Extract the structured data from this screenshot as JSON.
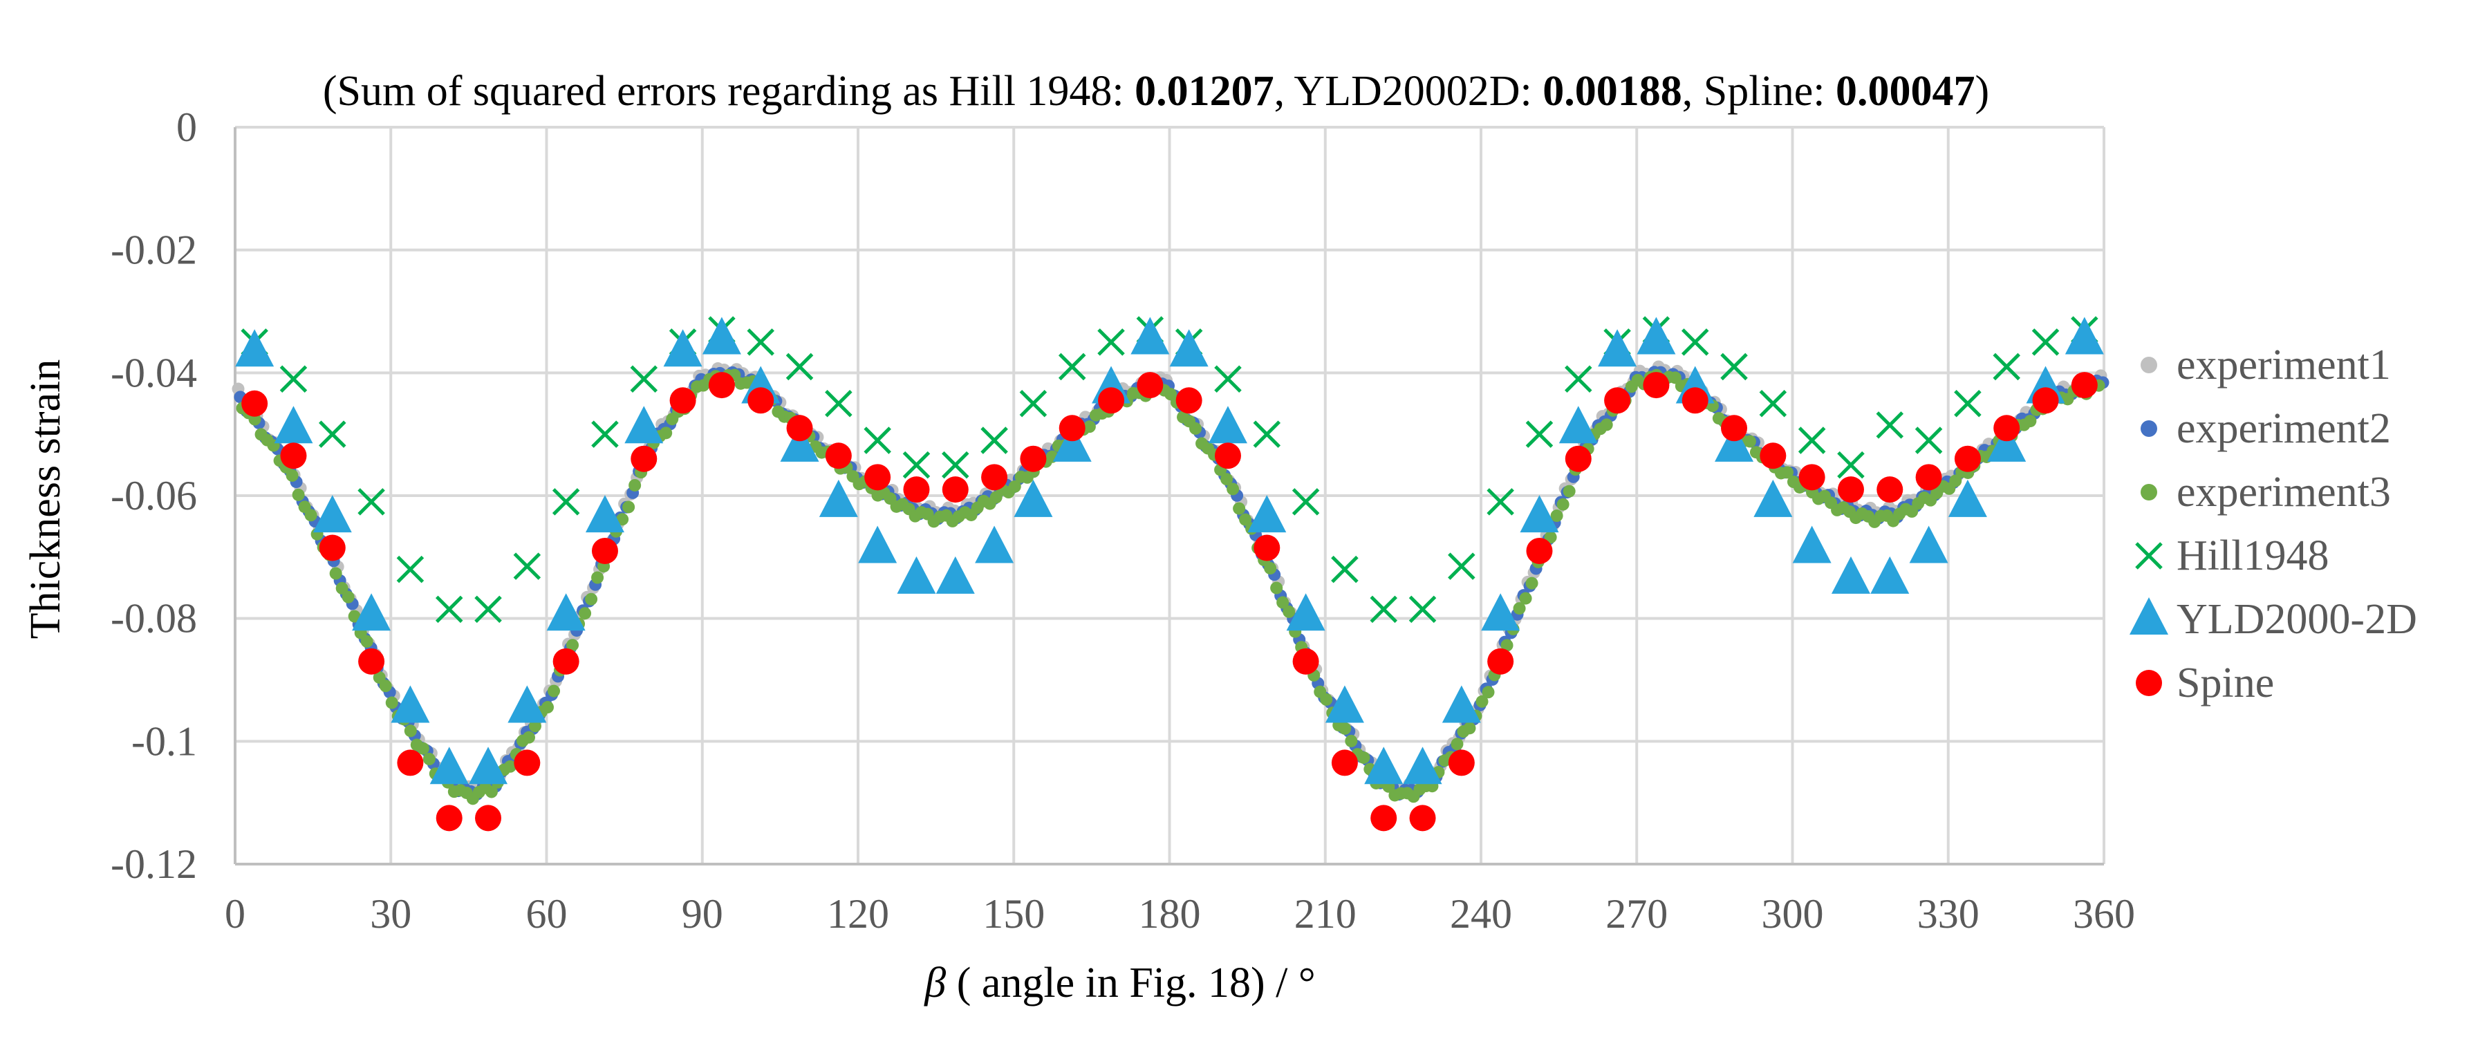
{
  "chart_data": {
    "type": "scatter",
    "title_parts": [
      {
        "text": "(Sum of squared errors regarding as  Hill 1948: ",
        "bold": false
      },
      {
        "text": "0.01207",
        "bold": true
      },
      {
        "text": ", YLD20002D: ",
        "bold": false
      },
      {
        "text": "0.00188",
        "bold": true
      },
      {
        "text": ", Spline: ",
        "bold": false
      },
      {
        "text": "0.00047",
        "bold": true
      },
      {
        "text": ")",
        "bold": false
      }
    ],
    "xlabel_italic": "β",
    "xlabel_rest": " ( angle in Fig. 18) / °",
    "ylabel": "Thickness strain",
    "xlim": [
      0,
      360
    ],
    "ylim": [
      -0.12,
      0
    ],
    "xticks": [
      0,
      30,
      60,
      90,
      120,
      150,
      180,
      210,
      240,
      270,
      300,
      330,
      360
    ],
    "yticks": [
      0,
      -0.02,
      -0.04,
      -0.06,
      -0.08,
      -0.1,
      -0.12
    ],
    "ytick_labels": [
      "0",
      "-0.02",
      "-0.04",
      "-0.06",
      "-0.08",
      "-0.1",
      "-0.12"
    ],
    "grid": true,
    "legend_position": "right",
    "experiment_curve": {
      "x": [
        0,
        10,
        20,
        30,
        40,
        45,
        50,
        60,
        70,
        80,
        90,
        95,
        100,
        110,
        120,
        130,
        135,
        140,
        150,
        160,
        170,
        180
      ],
      "y_base": [
        -0.043,
        -0.055,
        -0.073,
        -0.093,
        -0.106,
        -0.1085,
        -0.107,
        -0.094,
        -0.073,
        -0.052,
        -0.041,
        -0.04,
        -0.0415,
        -0.05,
        -0.057,
        -0.062,
        -0.0632,
        -0.063,
        -0.058,
        -0.051,
        -0.044,
        -0.0415
      ],
      "period": 180,
      "step": 1.2
    },
    "series": [
      {
        "name": "experiment1",
        "marker": "circle-small",
        "color": "#c0c0c0",
        "offset": 0.0006
      },
      {
        "name": "experiment2",
        "marker": "circle-small",
        "color": "#4472c4",
        "offset": 0.0
      },
      {
        "name": "experiment3",
        "marker": "circle-small",
        "color": "#70ad47",
        "offset": -0.0005
      },
      {
        "name": "Hill1948",
        "marker": "cross",
        "color": "#00b050",
        "x": [
          3.75,
          11.25,
          18.75,
          26.25,
          33.75,
          41.25,
          48.75,
          56.25,
          63.75,
          71.25,
          78.75,
          86.25,
          93.75,
          101.25,
          108.75,
          116.25,
          123.75,
          131.25,
          138.75,
          146.25,
          153.75,
          161.25,
          168.75,
          176.25,
          183.75,
          191.25,
          198.75,
          206.25,
          213.75,
          221.25,
          228.75,
          236.25,
          243.75,
          251.25,
          258.75,
          266.25,
          273.75,
          281.25,
          288.75,
          296.25,
          303.75,
          311.25,
          318.75,
          326.25,
          333.75,
          341.25,
          348.75,
          356.25
        ],
        "y": [
          -0.035,
          -0.041,
          -0.05,
          -0.061,
          -0.072,
          -0.0785,
          -0.0785,
          -0.0715,
          -0.061,
          -0.05,
          -0.041,
          -0.035,
          -0.033,
          -0.035,
          -0.039,
          -0.045,
          -0.051,
          -0.055,
          -0.055,
          -0.051,
          -0.045,
          -0.039,
          -0.035,
          -0.033,
          -0.035,
          -0.041,
          -0.05,
          -0.061,
          -0.072,
          -0.0785,
          -0.0785,
          -0.0715,
          -0.061,
          -0.05,
          -0.041,
          -0.035,
          -0.033,
          -0.035,
          -0.039,
          -0.045,
          -0.051,
          -0.055,
          -0.0485,
          -0.051,
          -0.045,
          -0.039,
          -0.035,
          -0.033
        ]
      },
      {
        "name": "YLD2000-2D",
        "marker": "triangle",
        "color": "#29a3dc",
        "x": [
          3.75,
          11.25,
          18.75,
          26.25,
          33.75,
          41.25,
          48.75,
          56.25,
          63.75,
          71.25,
          78.75,
          86.25,
          93.75,
          101.25,
          108.75,
          116.25,
          123.75,
          131.25,
          138.75,
          146.25,
          153.75,
          161.25,
          168.75,
          176.25,
          183.75,
          191.25,
          198.75,
          206.25,
          213.75,
          221.25,
          228.75,
          236.25,
          243.75,
          251.25,
          258.75,
          266.25,
          273.75,
          281.25,
          288.75,
          296.25,
          303.75,
          311.25,
          318.75,
          326.25,
          333.75,
          341.25,
          348.75,
          356.25
        ],
        "y": [
          -0.0365,
          -0.049,
          -0.0635,
          -0.0795,
          -0.0945,
          -0.1045,
          -0.1045,
          -0.0945,
          -0.0795,
          -0.0635,
          -0.049,
          -0.0365,
          -0.0345,
          -0.0425,
          -0.052,
          -0.061,
          -0.0685,
          -0.0735,
          -0.0735,
          -0.0685,
          -0.061,
          -0.052,
          -0.0425,
          -0.0345,
          -0.0365,
          -0.049,
          -0.0635,
          -0.0795,
          -0.0945,
          -0.1045,
          -0.1045,
          -0.0945,
          -0.0795,
          -0.0635,
          -0.049,
          -0.0365,
          -0.0345,
          -0.0425,
          -0.052,
          -0.061,
          -0.0685,
          -0.0735,
          -0.0735,
          -0.0685,
          -0.061,
          -0.052,
          -0.0425,
          -0.0345
        ]
      },
      {
        "name": "Spine",
        "marker": "circle",
        "color": "#ff0000",
        "x": [
          3.75,
          11.25,
          18.75,
          26.25,
          33.75,
          41.25,
          48.75,
          56.25,
          63.75,
          71.25,
          78.75,
          86.25,
          93.75,
          101.25,
          108.75,
          116.25,
          123.75,
          131.25,
          138.75,
          146.25,
          153.75,
          161.25,
          168.75,
          176.25,
          183.75,
          191.25,
          198.75,
          206.25,
          213.75,
          221.25,
          228.75,
          236.25,
          243.75,
          251.25,
          258.75,
          266.25,
          273.75,
          281.25,
          288.75,
          296.25,
          303.75,
          311.25,
          318.75,
          326.25,
          333.75,
          341.25,
          348.75,
          356.25
        ],
        "y": [
          -0.045,
          -0.0535,
          -0.0685,
          -0.087,
          -0.1035,
          -0.1125,
          -0.1125,
          -0.1035,
          -0.087,
          -0.069,
          -0.054,
          -0.0445,
          -0.042,
          -0.0445,
          -0.049,
          -0.0535,
          -0.057,
          -0.059,
          -0.059,
          -0.057,
          -0.054,
          -0.049,
          -0.0445,
          -0.042,
          -0.0445,
          -0.0535,
          -0.0685,
          -0.087,
          -0.1035,
          -0.1125,
          -0.1125,
          -0.1035,
          -0.087,
          -0.069,
          -0.054,
          -0.0445,
          -0.042,
          -0.0445,
          -0.049,
          -0.0535,
          -0.057,
          -0.059,
          -0.059,
          -0.057,
          -0.054,
          -0.049,
          -0.0445,
          -0.042
        ]
      }
    ]
  }
}
